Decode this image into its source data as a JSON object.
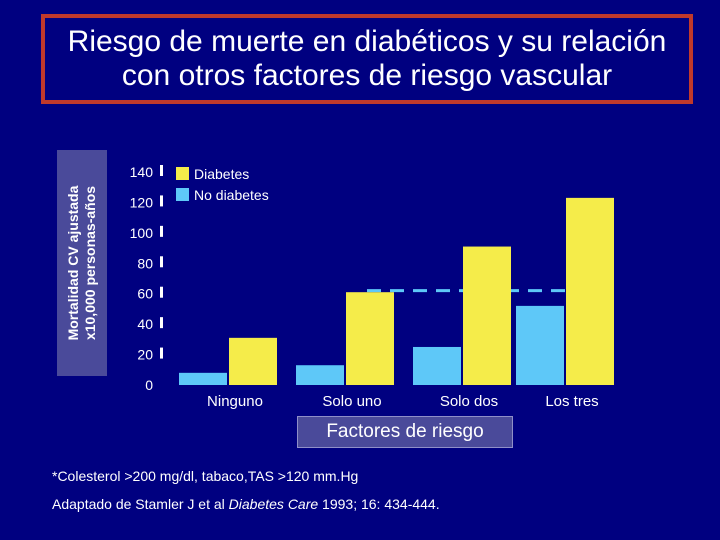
{
  "title": {
    "line1": "Riesgo de muerte en diabéticos y su relación",
    "line2": "con otros factores de riesgo vascular"
  },
  "y_axis_label": {
    "line1": "Mortalidad CV ajustada",
    "line2": "x10,000 personas-años"
  },
  "x_axis_title": "Factores de riesgo",
  "footnote": "*Colesterol >200 mg/dl, tabaco,TAS >120 mm.Hg",
  "citation": {
    "prefix": "Adaptado de Stamler J et al ",
    "journal": "Diabetes Care",
    "suffix": " 1993; 16: 434-444."
  },
  "colors": {
    "background": "#000080",
    "diabetes": "#f5ec4a",
    "no_diabetes": "#5ec8f8",
    "reference_line": "#5ec8f8",
    "title_border": "#c0392b"
  },
  "chart_data": {
    "type": "bar",
    "categories": [
      "Ninguno",
      "Solo uno",
      "Solo dos",
      "Los tres"
    ],
    "series": [
      {
        "name": "Diabetes",
        "values": [
          31,
          61,
          91,
          123
        ]
      },
      {
        "name": "No diabetes",
        "values": [
          8,
          13,
          25,
          52
        ]
      }
    ],
    "ylim": [
      0,
      140
    ],
    "yticks": [
      0,
      20,
      40,
      60,
      80,
      100,
      120,
      140
    ],
    "reference_line": {
      "value": 62,
      "style": "dashed",
      "from_category": "Solo uno",
      "to_category": "Los tres"
    },
    "legend_position": "top-left",
    "grid": false
  }
}
